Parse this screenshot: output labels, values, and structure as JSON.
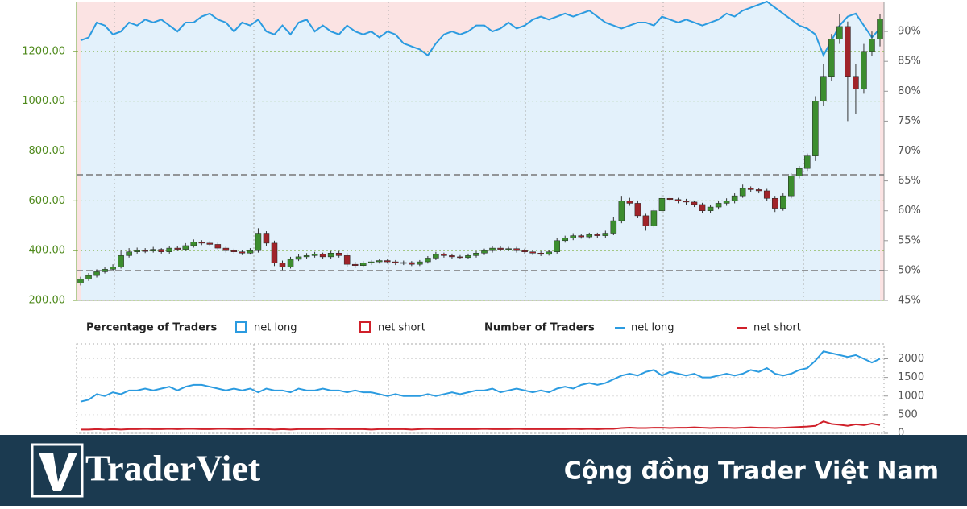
{
  "chart_data": [
    {
      "type": "candlestick",
      "up_color": "#3c8d2f",
      "down_color": "#a0242a",
      "wick_color": "#333333",
      "ylim": [
        200,
        1400
      ],
      "yticks": [
        {
          "value": 200,
          "label": "200.00"
        },
        {
          "value": 400,
          "label": "400.00"
        },
        {
          "value": 600,
          "label": "600.00"
        },
        {
          "value": 800,
          "label": "800.00"
        },
        {
          "value": 1000,
          "label": "1000.00"
        },
        {
          "value": 1200,
          "label": "1200.00"
        }
      ],
      "y2lim": [
        45,
        95
      ],
      "y2ticks": [
        {
          "value": 45,
          "label": "45%"
        },
        {
          "value": 50,
          "label": "50%"
        },
        {
          "value": 55,
          "label": "55%"
        },
        {
          "value": 60,
          "label": "60%"
        },
        {
          "value": 65,
          "label": "65%"
        },
        {
          "value": 70,
          "label": "70%"
        },
        {
          "value": 75,
          "label": "75%"
        },
        {
          "value": 80,
          "label": "80%"
        },
        {
          "value": 85,
          "label": "85%"
        },
        {
          "value": 90,
          "label": "90%"
        }
      ],
      "grid": true,
      "open": [
        270,
        285,
        300,
        315,
        325,
        335,
        380,
        395,
        400,
        398,
        405,
        395,
        410,
        405,
        420,
        435,
        430,
        425,
        410,
        400,
        395,
        390,
        400,
        470,
        430,
        350,
        335,
        365,
        375,
        380,
        385,
        375,
        390,
        380,
        345,
        340,
        350,
        355,
        360,
        355,
        350,
        352,
        345,
        355,
        370,
        385,
        380,
        375,
        372,
        380,
        390,
        400,
        410,
        405,
        408,
        400,
        395,
        390,
        385,
        395,
        440,
        450,
        460,
        455,
        465,
        460,
        470,
        520,
        600,
        590,
        540,
        500,
        560,
        610,
        605,
        600,
        595,
        585,
        560,
        575,
        590,
        600,
        620,
        650,
        645,
        640,
        610,
        570,
        620,
        700,
        730,
        780,
        1000,
        1100,
        1250,
        1300,
        1100,
        1050,
        1200,
        1250
      ],
      "high": [
        295,
        310,
        325,
        335,
        345,
        400,
        410,
        412,
        410,
        415,
        410,
        420,
        418,
        430,
        445,
        442,
        438,
        432,
        418,
        408,
        402,
        410,
        490,
        478,
        440,
        360,
        375,
        385,
        390,
        395,
        392,
        398,
        398,
        390,
        355,
        358,
        362,
        368,
        368,
        362,
        360,
        358,
        362,
        378,
        395,
        392,
        388,
        382,
        388,
        398,
        408,
        418,
        418,
        415,
        415,
        408,
        402,
        398,
        402,
        450,
        460,
        470,
        468,
        472,
        472,
        480,
        535,
        620,
        612,
        598,
        548,
        570,
        625,
        620,
        612,
        608,
        600,
        592,
        585,
        598,
        610,
        630,
        665,
        658,
        652,
        648,
        620,
        630,
        710,
        740,
        790,
        1020,
        1150,
        1270,
        1350,
        1320,
        1150,
        1230,
        1280,
        1350
      ],
      "low": [
        260,
        278,
        292,
        308,
        318,
        328,
        372,
        388,
        390,
        392,
        388,
        388,
        398,
        398,
        412,
        422,
        418,
        402,
        392,
        388,
        382,
        384,
        392,
        420,
        338,
        322,
        328,
        358,
        368,
        372,
        365,
        368,
        372,
        335,
        330,
        332,
        342,
        348,
        348,
        342,
        342,
        338,
        338,
        348,
        362,
        372,
        368,
        365,
        366,
        372,
        382,
        392,
        398,
        398,
        392,
        388,
        382,
        378,
        380,
        388,
        432,
        442,
        448,
        448,
        452,
        452,
        462,
        510,
        580,
        530,
        480,
        492,
        550,
        595,
        590,
        585,
        575,
        552,
        552,
        565,
        580,
        590,
        612,
        635,
        630,
        600,
        555,
        560,
        610,
        690,
        720,
        760,
        980,
        1080,
        1230,
        920,
        950,
        1030,
        1180,
        1220
      ],
      "close": [
        285,
        300,
        315,
        325,
        335,
        380,
        395,
        400,
        398,
        405,
        395,
        410,
        405,
        420,
        435,
        430,
        425,
        410,
        400,
        395,
        390,
        400,
        470,
        430,
        350,
        335,
        365,
        375,
        380,
        385,
        375,
        390,
        380,
        345,
        340,
        350,
        355,
        360,
        355,
        350,
        352,
        345,
        355,
        370,
        385,
        380,
        375,
        372,
        380,
        390,
        400,
        410,
        405,
        408,
        400,
        395,
        390,
        385,
        395,
        440,
        450,
        460,
        455,
        465,
        460,
        470,
        520,
        600,
        590,
        540,
        500,
        560,
        610,
        605,
        600,
        595,
        585,
        560,
        575,
        590,
        600,
        620,
        650,
        645,
        640,
        610,
        570,
        620,
        700,
        730,
        780,
        1000,
        1100,
        1250,
        1300,
        1100,
        1050,
        1200,
        1250,
        1330
      ],
      "legend_title": "Percentage of Traders",
      "series": [
        {
          "name": "net long",
          "color": "#2b9be0",
          "fill": "#e3f1fb",
          "axis": "y2",
          "values": [
            88.5,
            89,
            91.5,
            91,
            89.5,
            90,
            91.5,
            91,
            92,
            91.5,
            92,
            91,
            90,
            91.5,
            91.5,
            92.5,
            93,
            92,
            91.5,
            90,
            91.5,
            91,
            92,
            90,
            89.5,
            91,
            89.5,
            91.5,
            92,
            90,
            91,
            90,
            89.5,
            91,
            90,
            89.5,
            90,
            89,
            90,
            89.5,
            88,
            87.5,
            87,
            86,
            88,
            89.5,
            90,
            89.5,
            90,
            91,
            91,
            90,
            90.5,
            91.5,
            90.5,
            91,
            92,
            92.5,
            92,
            92.5,
            93,
            92.5,
            93,
            93.5,
            92.5,
            91.5,
            91,
            90.5,
            91,
            91.5,
            91.5,
            91,
            92.5,
            92,
            91.5,
            92,
            91.5,
            91,
            91.5,
            92,
            93,
            92.5,
            93.5,
            94,
            94.5,
            95,
            94,
            93,
            92,
            91,
            90.5,
            89.5,
            86,
            88.5,
            91,
            92.5,
            93,
            91,
            89,
            90.5
          ]
        },
        {
          "name": "net short",
          "color": "#d0202a",
          "fill": "#fbe3e3"
        }
      ]
    },
    {
      "type": "line",
      "ylim": [
        0,
        2400
      ],
      "yticks": [
        0,
        500,
        1000,
        1500,
        2000
      ],
      "grid": true,
      "legend_title": "Number of Traders",
      "series": [
        {
          "name": "net long",
          "color": "#2b9be0",
          "values": [
            850,
            900,
            1050,
            1000,
            1100,
            1050,
            1150,
            1150,
            1200,
            1150,
            1200,
            1250,
            1150,
            1250,
            1300,
            1300,
            1250,
            1200,
            1150,
            1200,
            1150,
            1200,
            1100,
            1200,
            1150,
            1150,
            1100,
            1200,
            1150,
            1150,
            1200,
            1150,
            1150,
            1100,
            1150,
            1100,
            1100,
            1050,
            1000,
            1050,
            1000,
            1000,
            1000,
            1050,
            1000,
            1050,
            1100,
            1050,
            1100,
            1150,
            1150,
            1200,
            1100,
            1150,
            1200,
            1150,
            1100,
            1150,
            1100,
            1200,
            1250,
            1200,
            1300,
            1350,
            1300,
            1350,
            1450,
            1550,
            1600,
            1550,
            1650,
            1700,
            1550,
            1650,
            1600,
            1550,
            1600,
            1500,
            1500,
            1550,
            1600,
            1550,
            1600,
            1700,
            1650,
            1750,
            1600,
            1550,
            1600,
            1700,
            1750,
            1950,
            2200,
            2150,
            2100,
            2050,
            2100,
            2000,
            1900,
            2000
          ]
        },
        {
          "name": "net short",
          "color": "#d0202a",
          "values": [
            100,
            100,
            110,
            100,
            110,
            100,
            110,
            110,
            120,
            110,
            110,
            120,
            110,
            120,
            120,
            110,
            110,
            120,
            120,
            110,
            110,
            120,
            110,
            110,
            100,
            110,
            100,
            110,
            110,
            110,
            110,
            120,
            110,
            110,
            110,
            110,
            100,
            110,
            110,
            110,
            110,
            100,
            110,
            120,
            110,
            110,
            110,
            110,
            110,
            110,
            120,
            110,
            110,
            110,
            120,
            110,
            110,
            110,
            110,
            110,
            110,
            120,
            110,
            120,
            110,
            120,
            120,
            140,
            150,
            140,
            140,
            150,
            150,
            140,
            150,
            150,
            160,
            150,
            140,
            150,
            150,
            140,
            150,
            160,
            150,
            150,
            140,
            150,
            160,
            170,
            180,
            200,
            320,
            250,
            230,
            200,
            240,
            220,
            260,
            220
          ]
        }
      ]
    }
  ],
  "footer": {
    "brand": "TraderViet",
    "tagline": "Cộng đồng Trader Việt Nam"
  }
}
